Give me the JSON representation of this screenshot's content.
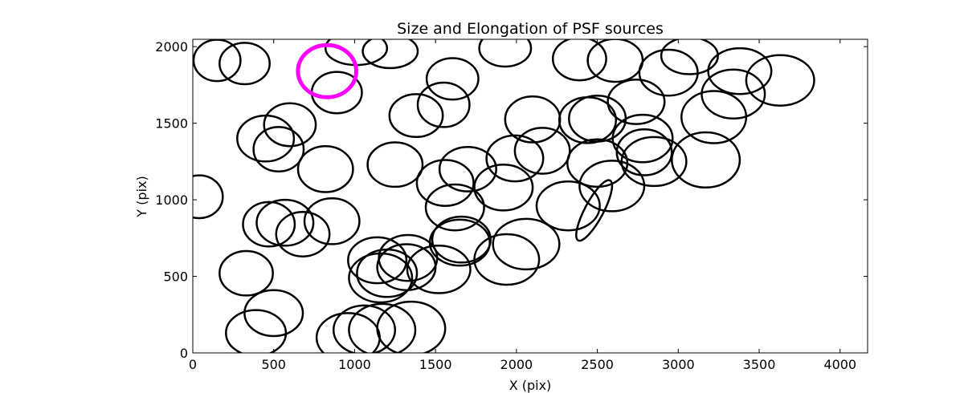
{
  "chart_data": {
    "type": "scatter",
    "title": "Size and Elongation of PSF sources",
    "xlabel": "X (pix)",
    "ylabel": "Y (pix)",
    "xlim": [
      0,
      4170
    ],
    "ylim": [
      0,
      2048
    ],
    "xticks": [
      0,
      500,
      1000,
      1500,
      2000,
      2500,
      3000,
      3500,
      4000
    ],
    "yticks": [
      0,
      500,
      1000,
      1500,
      2000
    ],
    "xtick_labels": [
      "0",
      "500",
      "1000",
      "1500",
      "2000",
      "2500",
      "3000",
      "3500",
      "4000"
    ],
    "ytick_labels": [
      "0",
      "500",
      "1000",
      "1500",
      "2000"
    ],
    "grid": false,
    "colors": {
      "source": "#000000",
      "highlight": "#ff00ff"
    },
    "series": [
      {
        "marker": "ellipse",
        "color": "#000000",
        "points": [
          {
            "x": 150,
            "y": 1910,
            "a": 145,
            "b": 135,
            "angle": 0
          },
          {
            "x": 320,
            "y": 1890,
            "a": 155,
            "b": 135,
            "angle": 0
          },
          {
            "x": 1010,
            "y": 1990,
            "a": 190,
            "b": 110,
            "angle": 0
          },
          {
            "x": 1220,
            "y": 1970,
            "a": 170,
            "b": 110,
            "angle": 0
          },
          {
            "x": 1605,
            "y": 1790,
            "a": 160,
            "b": 135,
            "angle": 0
          },
          {
            "x": 1930,
            "y": 1990,
            "a": 160,
            "b": 120,
            "angle": 0
          },
          {
            "x": 2390,
            "y": 1920,
            "a": 165,
            "b": 140,
            "angle": 0
          },
          {
            "x": 2610,
            "y": 1910,
            "a": 170,
            "b": 140,
            "angle": 0
          },
          {
            "x": 2940,
            "y": 1830,
            "a": 180,
            "b": 150,
            "angle": 0
          },
          {
            "x": 3070,
            "y": 1940,
            "a": 175,
            "b": 120,
            "angle": 0
          },
          {
            "x": 3380,
            "y": 1840,
            "a": 195,
            "b": 150,
            "angle": 0
          },
          {
            "x": 3630,
            "y": 1780,
            "a": 210,
            "b": 165,
            "angle": 0
          },
          {
            "x": 3340,
            "y": 1690,
            "a": 195,
            "b": 160,
            "angle": 0
          },
          {
            "x": 2740,
            "y": 1640,
            "a": 175,
            "b": 145,
            "angle": 0
          },
          {
            "x": 890,
            "y": 1700,
            "a": 155,
            "b": 135,
            "angle": 0
          },
          {
            "x": 1380,
            "y": 1550,
            "a": 165,
            "b": 140,
            "angle": 0
          },
          {
            "x": 1550,
            "y": 1620,
            "a": 160,
            "b": 145,
            "angle": 0
          },
          {
            "x": 600,
            "y": 1490,
            "a": 160,
            "b": 140,
            "angle": 0
          },
          {
            "x": 450,
            "y": 1400,
            "a": 175,
            "b": 150,
            "angle": 0
          },
          {
            "x": 530,
            "y": 1330,
            "a": 155,
            "b": 145,
            "angle": 0
          },
          {
            "x": 820,
            "y": 1200,
            "a": 170,
            "b": 150,
            "angle": 0
          },
          {
            "x": 1250,
            "y": 1230,
            "a": 170,
            "b": 145,
            "angle": 0
          },
          {
            "x": 1700,
            "y": 1200,
            "a": 175,
            "b": 145,
            "angle": 0
          },
          {
            "x": 1560,
            "y": 1110,
            "a": 175,
            "b": 150,
            "angle": 0
          },
          {
            "x": 1620,
            "y": 950,
            "a": 180,
            "b": 150,
            "angle": 0
          },
          {
            "x": 1920,
            "y": 1080,
            "a": 180,
            "b": 150,
            "angle": 0
          },
          {
            "x": 1990,
            "y": 1270,
            "a": 175,
            "b": 150,
            "angle": 0
          },
          {
            "x": 2100,
            "y": 1525,
            "a": 170,
            "b": 150,
            "angle": 0
          },
          {
            "x": 2160,
            "y": 1320,
            "a": 170,
            "b": 150,
            "angle": 0
          },
          {
            "x": 2440,
            "y": 1520,
            "a": 175,
            "b": 150,
            "angle": 0
          },
          {
            "x": 2500,
            "y": 1530,
            "a": 175,
            "b": 150,
            "angle": 0
          },
          {
            "x": 2500,
            "y": 1240,
            "a": 185,
            "b": 155,
            "angle": 0
          },
          {
            "x": 2590,
            "y": 1090,
            "a": 200,
            "b": 165,
            "angle": 0
          },
          {
            "x": 2780,
            "y": 1400,
            "a": 185,
            "b": 155,
            "angle": 0
          },
          {
            "x": 2790,
            "y": 1310,
            "a": 170,
            "b": 150,
            "angle": 0
          },
          {
            "x": 2850,
            "y": 1250,
            "a": 200,
            "b": 160,
            "angle": 0
          },
          {
            "x": 3170,
            "y": 1260,
            "a": 210,
            "b": 180,
            "angle": 0
          },
          {
            "x": 3220,
            "y": 1540,
            "a": 200,
            "b": 170,
            "angle": 0
          },
          {
            "x": 2320,
            "y": 960,
            "a": 195,
            "b": 160,
            "angle": 0
          },
          {
            "x": 2480,
            "y": 930,
            "a": 210,
            "b": 60,
            "angle": 62
          },
          {
            "x": 40,
            "y": 1020,
            "a": 145,
            "b": 140,
            "angle": 0
          },
          {
            "x": 470,
            "y": 840,
            "a": 160,
            "b": 145,
            "angle": 0
          },
          {
            "x": 570,
            "y": 850,
            "a": 175,
            "b": 150,
            "angle": 0
          },
          {
            "x": 680,
            "y": 775,
            "a": 165,
            "b": 145,
            "angle": 0
          },
          {
            "x": 860,
            "y": 860,
            "a": 170,
            "b": 150,
            "angle": 0
          },
          {
            "x": 330,
            "y": 520,
            "a": 165,
            "b": 145,
            "angle": 0
          },
          {
            "x": 500,
            "y": 260,
            "a": 180,
            "b": 150,
            "angle": 0
          },
          {
            "x": 390,
            "y": 130,
            "a": 185,
            "b": 150,
            "angle": 0
          },
          {
            "x": 960,
            "y": 100,
            "a": 195,
            "b": 160,
            "angle": 0
          },
          {
            "x": 1060,
            "y": 150,
            "a": 190,
            "b": 160,
            "angle": 0
          },
          {
            "x": 1170,
            "y": 150,
            "a": 205,
            "b": 170,
            "angle": 0
          },
          {
            "x": 1350,
            "y": 160,
            "a": 210,
            "b": 175,
            "angle": 0
          },
          {
            "x": 1140,
            "y": 605,
            "a": 180,
            "b": 150,
            "angle": 0
          },
          {
            "x": 1160,
            "y": 490,
            "a": 195,
            "b": 160,
            "angle": 0
          },
          {
            "x": 1200,
            "y": 520,
            "a": 185,
            "b": 155,
            "angle": 0
          },
          {
            "x": 1330,
            "y": 620,
            "a": 180,
            "b": 150,
            "angle": 0
          },
          {
            "x": 1320,
            "y": 560,
            "a": 180,
            "b": 150,
            "angle": 0
          },
          {
            "x": 1520,
            "y": 545,
            "a": 195,
            "b": 155,
            "angle": 0
          },
          {
            "x": 1650,
            "y": 720,
            "a": 185,
            "b": 150,
            "angle": 0
          },
          {
            "x": 1660,
            "y": 740,
            "a": 180,
            "b": 150,
            "angle": 0
          },
          {
            "x": 1940,
            "y": 610,
            "a": 200,
            "b": 165,
            "angle": 0
          },
          {
            "x": 2060,
            "y": 710,
            "a": 205,
            "b": 165,
            "angle": 0
          }
        ]
      },
      {
        "marker": "ellipse",
        "color": "#ff00ff",
        "points": [
          {
            "x": 830,
            "y": 1840,
            "a": 180,
            "b": 170,
            "angle": 0
          }
        ]
      }
    ]
  }
}
